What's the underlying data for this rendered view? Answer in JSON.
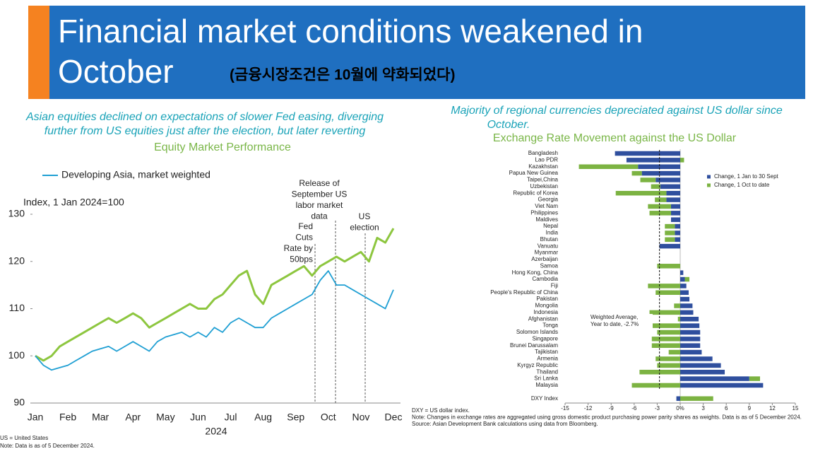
{
  "header": {
    "title_lines": [
      "Financial market conditions weakened in",
      "October"
    ],
    "subtitle": "(금융시장조건은 10월에 약화되었다)"
  },
  "chart_data": [
    {
      "type": "line",
      "caption_lines": [
        "Asian equities declined on expectations of slower Fed easing, diverging",
        "further from US equities just after the election, but later reverting"
      ],
      "title": "Equity Market Performance",
      "ylabel": "Index, 1 Jan 2024=100",
      "xlabel": "2024",
      "categories": [
        "Jan",
        null,
        null,
        null,
        "Feb",
        null,
        null,
        null,
        "Mar",
        null,
        null,
        null,
        "Apr",
        null,
        null,
        null,
        "May",
        null,
        null,
        null,
        "Jun",
        null,
        null,
        null,
        "Jul",
        null,
        null,
        null,
        "Aug",
        null,
        null,
        null,
        "Sep",
        null,
        null,
        null,
        "Oct",
        null,
        null,
        null,
        "Nov",
        null,
        null,
        null,
        "Dec"
      ],
      "series": [
        {
          "name": "Developing Asia, market weighted",
          "color": "#1f9fd3",
          "values": [
            100,
            98,
            97,
            97.5,
            98,
            99,
            100,
            101,
            101.5,
            102,
            101,
            102,
            103,
            102,
            101,
            103,
            104,
            104.5,
            105,
            104,
            105,
            104,
            106,
            105,
            107,
            108,
            107,
            106,
            106,
            108,
            109,
            110,
            111,
            112,
            113,
            116,
            118,
            115,
            115,
            114,
            113,
            112,
            111,
            110,
            114
          ]
        },
        {
          "color": "#8dc63f",
          "values": [
            100,
            99,
            100,
            102,
            103,
            104,
            105,
            106,
            107,
            108,
            107,
            108,
            109,
            108,
            106,
            107,
            108,
            109,
            110,
            111,
            110,
            110,
            112,
            113,
            115,
            117,
            118,
            113,
            111,
            115,
            116,
            117,
            118,
            119,
            117,
            119,
            120,
            121,
            120,
            121,
            122,
            120,
            125,
            124,
            127
          ]
        }
      ],
      "ylim": [
        90,
        130
      ],
      "yticks": [
        90,
        100,
        110,
        120,
        130
      ],
      "grid": false,
      "annotations": [
        {
          "lines": [
            "Fed",
            "Cuts",
            "Rate by",
            "50bps"
          ]
        },
        {
          "lines": [
            "Release of",
            "September US",
            "labor market",
            "data"
          ]
        },
        {
          "lines": [
            "US",
            "election"
          ]
        }
      ]
    },
    {
      "type": "hbar_stacked",
      "caption_lines": [
        "Majority of regional currencies depreciated  against US dollar since",
        "October."
      ],
      "title": "Exchange Rate Movement against the US Dollar",
      "categories": [
        "Bangladesh",
        "Lao PDR",
        "Kazakhstan",
        "Papua New Guinea",
        "Taipei,China",
        "Uzbekistan",
        "Republic of Korea",
        "Georgia",
        "Viet Nam",
        "Philippines",
        "Maldives",
        "Nepal",
        "India",
        "Bhutan",
        "Vanuatu",
        "Myanmar",
        "Azerbaijan",
        "Samoa",
        "Hong Kong, China",
        "Cambodia",
        "Fiji",
        "People's Republic of China",
        "Pakistan",
        "Mongolia",
        "Indonesia",
        "Afghanistan",
        "Tonga",
        "Solomon Islands",
        "Singapore",
        "Brunei Darussalam",
        "Tajikistan",
        "Armenia",
        "Kyrgyz Republic",
        "Thailand",
        "Sri Lanka",
        "Malaysia",
        null,
        "DXY Index"
      ],
      "series": [
        {
          "name": "Change, 1 Jan to 30 Sept",
          "color": "#2f4f9e",
          "values": [
            -8.5,
            -7,
            -5.5,
            -5,
            -3.2,
            -2.6,
            -1.8,
            -1.8,
            -1.2,
            -1.2,
            -1.2,
            -0.7,
            -0.7,
            -0.7,
            -2.7,
            0,
            0,
            0,
            0.4,
            0.6,
            0.8,
            1.1,
            1.2,
            1.6,
            1.7,
            2.4,
            2.5,
            2.6,
            2.6,
            2.6,
            2.8,
            4.2,
            5.3,
            5.8,
            9,
            10.8,
            null,
            -0.5
          ]
        },
        {
          "name": "Change, 1 Oct to date",
          "color": "#7cb342",
          "values": [
            0,
            0.5,
            -7.7,
            -1.3,
            -2,
            -1.2,
            -6.6,
            -1.5,
            -3,
            -2.8,
            0,
            -1.3,
            -1.3,
            -1.3,
            0,
            0,
            0,
            -3,
            0,
            0.6,
            -4.2,
            -3.2,
            0,
            -0.8,
            -4,
            -0.3,
            -4.5,
            -3,
            -3.7,
            -3.7,
            -1.5,
            -3.2,
            -3,
            -5.3,
            1.4,
            -6.3,
            null,
            4.3
          ]
        }
      ],
      "xlim": [
        -15,
        15
      ],
      "xticks": [
        -15,
        -12,
        -9,
        -6,
        -3,
        {
          "value": 0,
          "label": "0%"
        },
        3,
        6,
        9,
        12,
        15
      ],
      "legend": "right",
      "reference_line": {
        "value": -2.7,
        "lines": [
          "Weighted Average,",
          "Year to date, -2.7%"
        ]
      },
      "notes": [
        "DXY = US dollar index.",
        "Note: Changes in exchange rates are aggregated using gross domestic product purchasing power parity shares as weights.  Data is as of  5 December 2024.",
        "Source: Asian Development Bank calculations using data from Bloomberg."
      ]
    }
  ],
  "footnotes": [
    "US = United States",
    "Note: Data is as of  5 December 2024."
  ]
}
